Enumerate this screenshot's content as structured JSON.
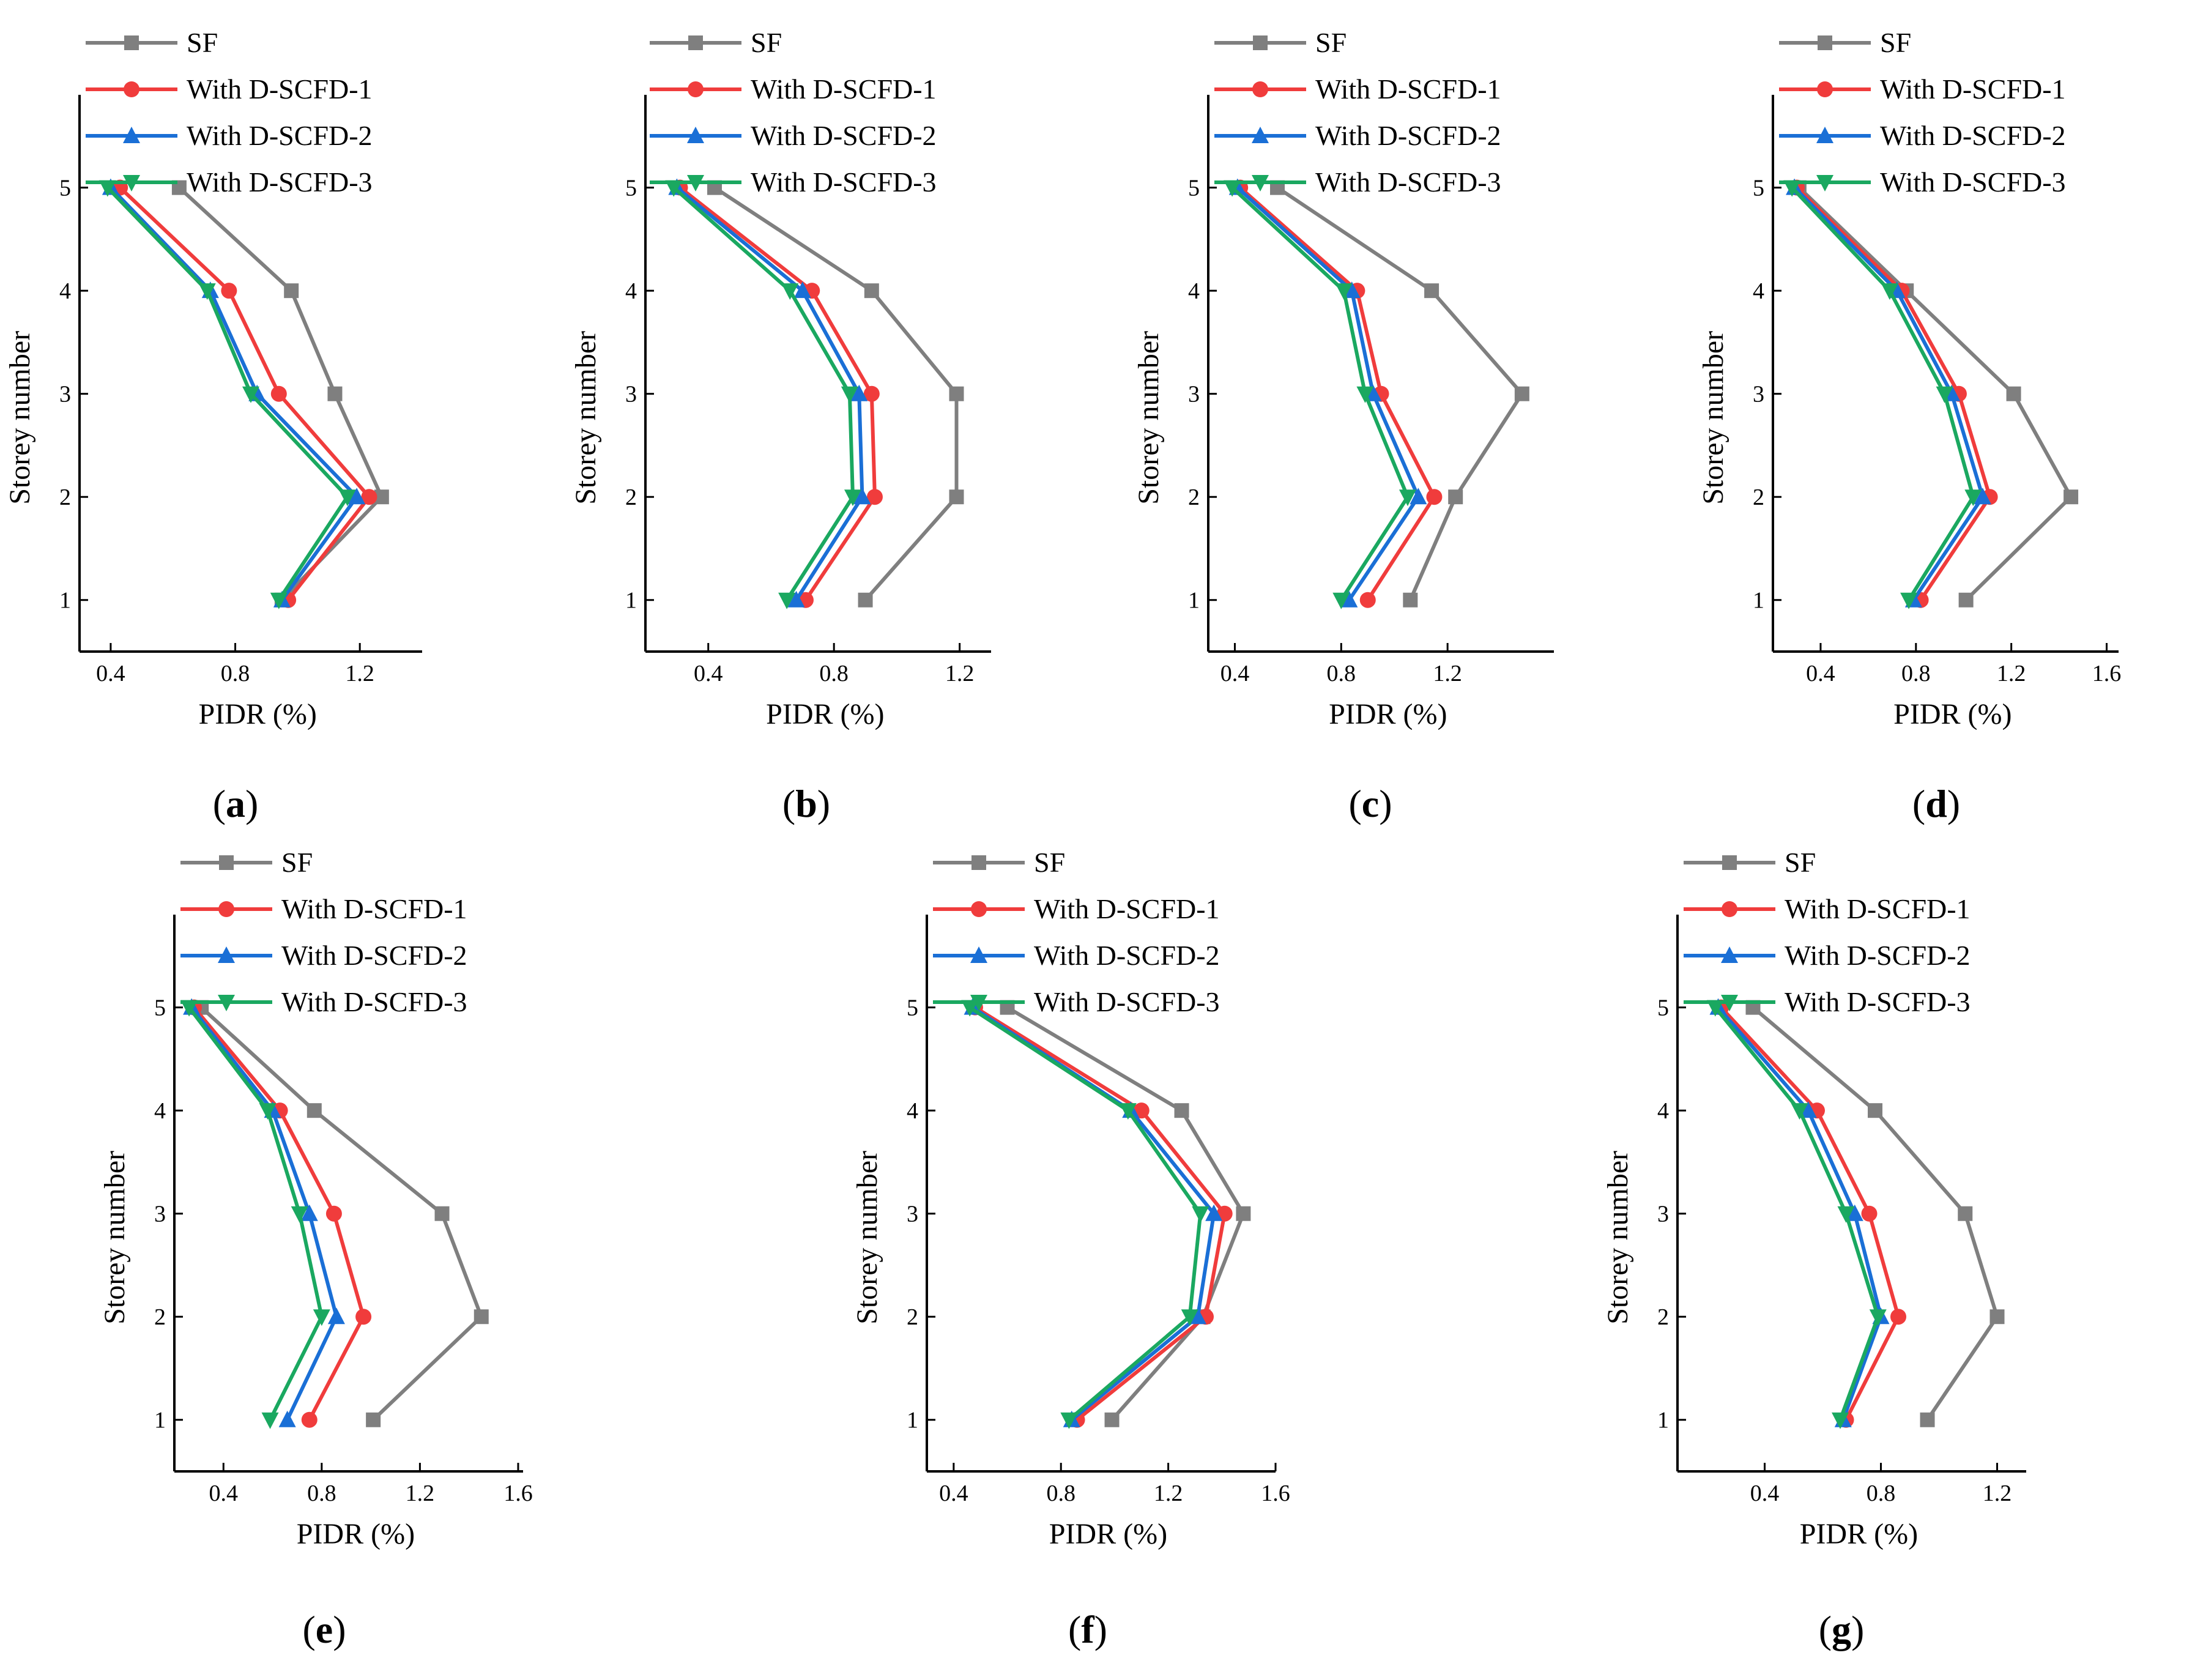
{
  "colors": {
    "SF": "#7f7f7f",
    "With D-SCFD-1": "#f03c3c",
    "With D-SCFD-2": "#1a6fd6",
    "With D-SCFD-3": "#1aa860"
  },
  "markers": {
    "SF": "square",
    "With D-SCFD-1": "circle",
    "With D-SCFD-2": "triangle-up",
    "With D-SCFD-3": "triangle-down"
  },
  "panel_labels": [
    {
      "open": "(",
      "letter": "a",
      "close": ")"
    },
    {
      "open": "(",
      "letter": "b",
      "close": ")"
    },
    {
      "open": "(",
      "letter": "c",
      "close": ")"
    },
    {
      "open": "(",
      "letter": "d",
      "close": ")"
    },
    {
      "open": "(",
      "letter": "e",
      "close": ")"
    },
    {
      "open": "(",
      "letter": "f",
      "close": ")"
    },
    {
      "open": "(",
      "letter": "g",
      "close": ")"
    }
  ],
  "chart_data": [
    {
      "type": "line",
      "panel": "a",
      "xlabel": "PIDR (%)",
      "ylabel": "Storey number",
      "xlim": [
        0.3,
        1.4
      ],
      "ylim": [
        0.5,
        5.9
      ],
      "xticks": [
        0.4,
        0.8,
        1.2
      ],
      "yticks": [
        1,
        2,
        3,
        4,
        5
      ],
      "y": [
        1,
        2,
        3,
        4,
        5
      ],
      "legend": "top",
      "series": [
        {
          "name": "SF",
          "x": [
            0.95,
            1.27,
            1.12,
            0.98,
            0.62
          ]
        },
        {
          "name": "With D-SCFD-1",
          "x": [
            0.97,
            1.23,
            0.94,
            0.78,
            0.43
          ]
        },
        {
          "name": "With D-SCFD-2",
          "x": [
            0.95,
            1.19,
            0.87,
            0.72,
            0.4
          ]
        },
        {
          "name": "With D-SCFD-3",
          "x": [
            0.94,
            1.16,
            0.85,
            0.71,
            0.39
          ]
        }
      ]
    },
    {
      "type": "line",
      "panel": "b",
      "xlabel": "PIDR (%)",
      "ylabel": "Storey number",
      "xlim": [
        0.2,
        1.3
      ],
      "ylim": [
        0.5,
        5.9
      ],
      "xticks": [
        0.4,
        0.8,
        1.2
      ],
      "yticks": [
        1,
        2,
        3,
        4,
        5
      ],
      "y": [
        1,
        2,
        3,
        4,
        5
      ],
      "legend": "top",
      "series": [
        {
          "name": "SF",
          "x": [
            0.9,
            1.19,
            1.19,
            0.92,
            0.42
          ]
        },
        {
          "name": "With D-SCFD-1",
          "x": [
            0.71,
            0.93,
            0.92,
            0.73,
            0.31
          ]
        },
        {
          "name": "With D-SCFD-2",
          "x": [
            0.68,
            0.89,
            0.88,
            0.7,
            0.3
          ]
        },
        {
          "name": "With D-SCFD-3",
          "x": [
            0.65,
            0.86,
            0.85,
            0.66,
            0.29
          ]
        }
      ]
    },
    {
      "type": "line",
      "panel": "c",
      "xlabel": "PIDR (%)",
      "ylabel": "Storey number",
      "xlim": [
        0.3,
        1.6
      ],
      "ylim": [
        0.5,
        5.9
      ],
      "xticks": [
        0.4,
        0.8,
        1.2
      ],
      "yticks": [
        1,
        2,
        3,
        4,
        5
      ],
      "y": [
        1,
        2,
        3,
        4,
        5
      ],
      "legend": "top",
      "series": [
        {
          "name": "SF",
          "x": [
            1.06,
            1.23,
            1.48,
            1.14,
            0.56
          ]
        },
        {
          "name": "With D-SCFD-1",
          "x": [
            0.9,
            1.15,
            0.95,
            0.86,
            0.42
          ]
        },
        {
          "name": "With D-SCFD-2",
          "x": [
            0.83,
            1.09,
            0.92,
            0.84,
            0.41
          ]
        },
        {
          "name": "With D-SCFD-3",
          "x": [
            0.8,
            1.05,
            0.89,
            0.81,
            0.39
          ]
        }
      ]
    },
    {
      "type": "line",
      "panel": "d",
      "xlabel": "PIDR (%)",
      "ylabel": "Storey number",
      "xlim": [
        0.2,
        1.65
      ],
      "ylim": [
        0.5,
        5.9
      ],
      "xticks": [
        0.4,
        0.8,
        1.2,
        1.6
      ],
      "yticks": [
        1,
        2,
        3,
        4,
        5
      ],
      "y": [
        1,
        2,
        3,
        4,
        5
      ],
      "legend": "top",
      "series": [
        {
          "name": "SF",
          "x": [
            1.01,
            1.45,
            1.21,
            0.76,
            0.31
          ]
        },
        {
          "name": "With D-SCFD-1",
          "x": [
            0.82,
            1.11,
            0.98,
            0.74,
            0.3
          ]
        },
        {
          "name": "With D-SCFD-2",
          "x": [
            0.79,
            1.08,
            0.95,
            0.72,
            0.29
          ]
        },
        {
          "name": "With D-SCFD-3",
          "x": [
            0.77,
            1.04,
            0.92,
            0.69,
            0.28
          ]
        }
      ]
    },
    {
      "type": "line",
      "panel": "e",
      "xlabel": "PIDR (%)",
      "ylabel": "Storey number",
      "xlim": [
        0.2,
        1.62
      ],
      "ylim": [
        0.5,
        5.9
      ],
      "xticks": [
        0.4,
        0.8,
        1.2,
        1.6
      ],
      "yticks": [
        1,
        2,
        3,
        4,
        5
      ],
      "y": [
        1,
        2,
        3,
        4,
        5
      ],
      "legend": "top",
      "series": [
        {
          "name": "SF",
          "x": [
            1.01,
            1.45,
            1.29,
            0.77,
            0.31
          ]
        },
        {
          "name": "With D-SCFD-1",
          "x": [
            0.75,
            0.97,
            0.85,
            0.63,
            0.28
          ]
        },
        {
          "name": "With D-SCFD-2",
          "x": [
            0.66,
            0.86,
            0.75,
            0.6,
            0.27
          ]
        },
        {
          "name": "With D-SCFD-3",
          "x": [
            0.59,
            0.8,
            0.71,
            0.58,
            0.26
          ]
        }
      ]
    },
    {
      "type": "line",
      "panel": "f",
      "xlabel": "PIDR (%)",
      "ylabel": "Storey number",
      "xlim": [
        0.3,
        1.6
      ],
      "ylim": [
        0.5,
        5.9
      ],
      "xticks": [
        0.4,
        0.8,
        1.2,
        1.6
      ],
      "yticks": [
        1,
        2,
        3,
        4,
        5
      ],
      "y": [
        1,
        2,
        3,
        4,
        5
      ],
      "legend": "top",
      "series": [
        {
          "name": "SF",
          "x": [
            0.99,
            1.33,
            1.48,
            1.25,
            0.6
          ]
        },
        {
          "name": "With D-SCFD-1",
          "x": [
            0.86,
            1.34,
            1.41,
            1.1,
            0.48
          ]
        },
        {
          "name": "With D-SCFD-2",
          "x": [
            0.84,
            1.31,
            1.37,
            1.06,
            0.47
          ]
        },
        {
          "name": "With D-SCFD-3",
          "x": [
            0.83,
            1.28,
            1.32,
            1.05,
            0.46
          ]
        }
      ]
    },
    {
      "type": "line",
      "panel": "g",
      "xlabel": "PIDR (%)",
      "ylabel": "Storey number",
      "xlim": [
        0.1,
        1.3
      ],
      "ylim": [
        0.5,
        5.9
      ],
      "xticks": [
        0.4,
        0.8,
        1.2
      ],
      "yticks": [
        1,
        2,
        3,
        4,
        5
      ],
      "y": [
        1,
        2,
        3,
        4,
        5
      ],
      "legend": "top",
      "series": [
        {
          "name": "SF",
          "x": [
            0.96,
            1.2,
            1.09,
            0.78,
            0.36
          ]
        },
        {
          "name": "With D-SCFD-1",
          "x": [
            0.68,
            0.86,
            0.76,
            0.58,
            0.25
          ]
        },
        {
          "name": "With D-SCFD-2",
          "x": [
            0.67,
            0.8,
            0.71,
            0.55,
            0.24
          ]
        },
        {
          "name": "With D-SCFD-3",
          "x": [
            0.66,
            0.79,
            0.68,
            0.52,
            0.23
          ]
        }
      ]
    }
  ]
}
